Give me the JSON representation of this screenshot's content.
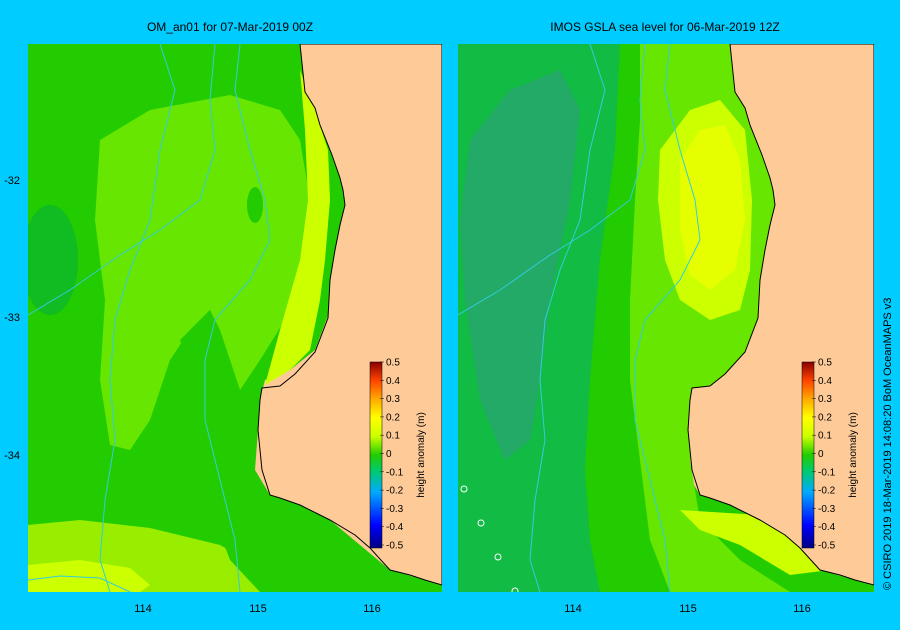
{
  "panels": [
    {
      "id": "left",
      "title": "OM_an01  for 07-Mar-2019 00Z",
      "xticks": [
        "114",
        "115",
        "116"
      ],
      "yticks": [
        "-32",
        "-33",
        "-34"
      ],
      "colorbar": {
        "label": "height anomaly  (m)",
        "ticks": [
          "0.5",
          "0.4",
          "0.3",
          "0.2",
          "0.1",
          "0",
          "-0.1",
          "-0.2",
          "-0.3",
          "-0.4",
          "-0.5"
        ]
      }
    },
    {
      "id": "right",
      "title": "IMOS GSLA sea level  for 06-Mar-2019 12Z",
      "xticks": [
        "114",
        "115",
        "116"
      ],
      "yticks": [],
      "colorbar": {
        "label": "height anomaly  (m)",
        "ticks": [
          "0.5",
          "0.4",
          "0.3",
          "0.2",
          "0.1",
          "0",
          "-0.1",
          "-0.2",
          "-0.3",
          "-0.4",
          "-0.5"
        ]
      }
    }
  ],
  "credit": "© CSIRO 2019   18-Mar-2019 14:08:20 BoM OceanMAPS v3",
  "colors": {
    "land": "#fecb98",
    "background": "#00ccff",
    "bathymetry": "#33ccdd"
  }
}
